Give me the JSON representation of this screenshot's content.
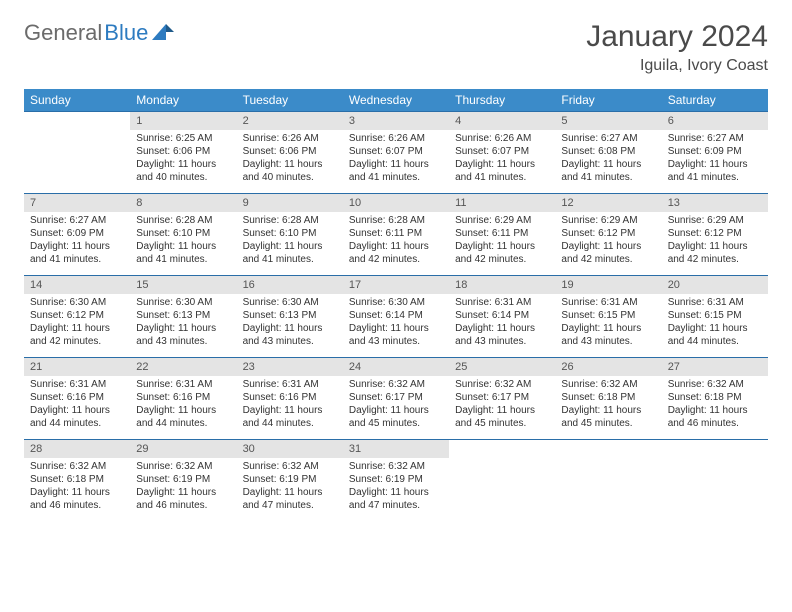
{
  "logo": {
    "part1": "General",
    "part2": "Blue"
  },
  "title": "January 2024",
  "location": "Iguila, Ivory Coast",
  "colors": {
    "header_bg": "#3b8bc9",
    "header_text": "#ffffff",
    "daynum_bg": "#e4e4e4",
    "row_border": "#2a6ea8",
    "logo_gray": "#6b6b6b",
    "logo_blue": "#2d7bc0",
    "text": "#333333"
  },
  "weekdays": [
    "Sunday",
    "Monday",
    "Tuesday",
    "Wednesday",
    "Thursday",
    "Friday",
    "Saturday"
  ],
  "weeks": [
    [
      null,
      {
        "n": "1",
        "sr": "Sunrise: 6:25 AM",
        "ss": "Sunset: 6:06 PM",
        "dl": "Daylight: 11 hours and 40 minutes."
      },
      {
        "n": "2",
        "sr": "Sunrise: 6:26 AM",
        "ss": "Sunset: 6:06 PM",
        "dl": "Daylight: 11 hours and 40 minutes."
      },
      {
        "n": "3",
        "sr": "Sunrise: 6:26 AM",
        "ss": "Sunset: 6:07 PM",
        "dl": "Daylight: 11 hours and 41 minutes."
      },
      {
        "n": "4",
        "sr": "Sunrise: 6:26 AM",
        "ss": "Sunset: 6:07 PM",
        "dl": "Daylight: 11 hours and 41 minutes."
      },
      {
        "n": "5",
        "sr": "Sunrise: 6:27 AM",
        "ss": "Sunset: 6:08 PM",
        "dl": "Daylight: 11 hours and 41 minutes."
      },
      {
        "n": "6",
        "sr": "Sunrise: 6:27 AM",
        "ss": "Sunset: 6:09 PM",
        "dl": "Daylight: 11 hours and 41 minutes."
      }
    ],
    [
      {
        "n": "7",
        "sr": "Sunrise: 6:27 AM",
        "ss": "Sunset: 6:09 PM",
        "dl": "Daylight: 11 hours and 41 minutes."
      },
      {
        "n": "8",
        "sr": "Sunrise: 6:28 AM",
        "ss": "Sunset: 6:10 PM",
        "dl": "Daylight: 11 hours and 41 minutes."
      },
      {
        "n": "9",
        "sr": "Sunrise: 6:28 AM",
        "ss": "Sunset: 6:10 PM",
        "dl": "Daylight: 11 hours and 41 minutes."
      },
      {
        "n": "10",
        "sr": "Sunrise: 6:28 AM",
        "ss": "Sunset: 6:11 PM",
        "dl": "Daylight: 11 hours and 42 minutes."
      },
      {
        "n": "11",
        "sr": "Sunrise: 6:29 AM",
        "ss": "Sunset: 6:11 PM",
        "dl": "Daylight: 11 hours and 42 minutes."
      },
      {
        "n": "12",
        "sr": "Sunrise: 6:29 AM",
        "ss": "Sunset: 6:12 PM",
        "dl": "Daylight: 11 hours and 42 minutes."
      },
      {
        "n": "13",
        "sr": "Sunrise: 6:29 AM",
        "ss": "Sunset: 6:12 PM",
        "dl": "Daylight: 11 hours and 42 minutes."
      }
    ],
    [
      {
        "n": "14",
        "sr": "Sunrise: 6:30 AM",
        "ss": "Sunset: 6:12 PM",
        "dl": "Daylight: 11 hours and 42 minutes."
      },
      {
        "n": "15",
        "sr": "Sunrise: 6:30 AM",
        "ss": "Sunset: 6:13 PM",
        "dl": "Daylight: 11 hours and 43 minutes."
      },
      {
        "n": "16",
        "sr": "Sunrise: 6:30 AM",
        "ss": "Sunset: 6:13 PM",
        "dl": "Daylight: 11 hours and 43 minutes."
      },
      {
        "n": "17",
        "sr": "Sunrise: 6:30 AM",
        "ss": "Sunset: 6:14 PM",
        "dl": "Daylight: 11 hours and 43 minutes."
      },
      {
        "n": "18",
        "sr": "Sunrise: 6:31 AM",
        "ss": "Sunset: 6:14 PM",
        "dl": "Daylight: 11 hours and 43 minutes."
      },
      {
        "n": "19",
        "sr": "Sunrise: 6:31 AM",
        "ss": "Sunset: 6:15 PM",
        "dl": "Daylight: 11 hours and 43 minutes."
      },
      {
        "n": "20",
        "sr": "Sunrise: 6:31 AM",
        "ss": "Sunset: 6:15 PM",
        "dl": "Daylight: 11 hours and 44 minutes."
      }
    ],
    [
      {
        "n": "21",
        "sr": "Sunrise: 6:31 AM",
        "ss": "Sunset: 6:16 PM",
        "dl": "Daylight: 11 hours and 44 minutes."
      },
      {
        "n": "22",
        "sr": "Sunrise: 6:31 AM",
        "ss": "Sunset: 6:16 PM",
        "dl": "Daylight: 11 hours and 44 minutes."
      },
      {
        "n": "23",
        "sr": "Sunrise: 6:31 AM",
        "ss": "Sunset: 6:16 PM",
        "dl": "Daylight: 11 hours and 44 minutes."
      },
      {
        "n": "24",
        "sr": "Sunrise: 6:32 AM",
        "ss": "Sunset: 6:17 PM",
        "dl": "Daylight: 11 hours and 45 minutes."
      },
      {
        "n": "25",
        "sr": "Sunrise: 6:32 AM",
        "ss": "Sunset: 6:17 PM",
        "dl": "Daylight: 11 hours and 45 minutes."
      },
      {
        "n": "26",
        "sr": "Sunrise: 6:32 AM",
        "ss": "Sunset: 6:18 PM",
        "dl": "Daylight: 11 hours and 45 minutes."
      },
      {
        "n": "27",
        "sr": "Sunrise: 6:32 AM",
        "ss": "Sunset: 6:18 PM",
        "dl": "Daylight: 11 hours and 46 minutes."
      }
    ],
    [
      {
        "n": "28",
        "sr": "Sunrise: 6:32 AM",
        "ss": "Sunset: 6:18 PM",
        "dl": "Daylight: 11 hours and 46 minutes."
      },
      {
        "n": "29",
        "sr": "Sunrise: 6:32 AM",
        "ss": "Sunset: 6:19 PM",
        "dl": "Daylight: 11 hours and 46 minutes."
      },
      {
        "n": "30",
        "sr": "Sunrise: 6:32 AM",
        "ss": "Sunset: 6:19 PM",
        "dl": "Daylight: 11 hours and 47 minutes."
      },
      {
        "n": "31",
        "sr": "Sunrise: 6:32 AM",
        "ss": "Sunset: 6:19 PM",
        "dl": "Daylight: 11 hours and 47 minutes."
      },
      null,
      null,
      null
    ]
  ]
}
